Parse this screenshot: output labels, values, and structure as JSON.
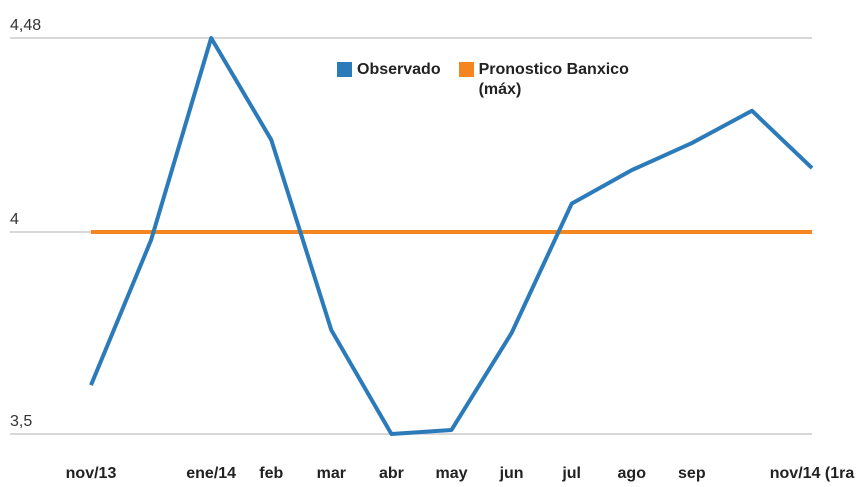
{
  "chart_data": {
    "type": "line",
    "categories": [
      "nov/13",
      null,
      "ene/14",
      "feb",
      "mar",
      "abr",
      "may",
      "jun",
      "jul",
      "ago",
      "sep",
      null,
      "nov/14 (1ra"
    ],
    "series": [
      {
        "name": "Observado",
        "color": "#2b7bba",
        "values": [
          3.621,
          3.98,
          4.48,
          4.228,
          3.757,
          3.5,
          3.51,
          3.75,
          4.07,
          4.153,
          4.22,
          4.3,
          4.158
        ]
      },
      {
        "name": "Pronostico Banxico (máx)",
        "color": "#f5861f",
        "values": [
          4,
          4,
          4,
          4,
          4,
          4,
          4,
          4,
          4,
          4,
          4,
          4,
          4
        ]
      }
    ],
    "ylim": [
      3.5,
      4.48
    ],
    "yticks": [
      {
        "value": 3.5,
        "label": "3,5"
      },
      4,
      {
        "value": 4.48,
        "label": "4,48"
      }
    ],
    "grid": true,
    "legend": "top"
  }
}
